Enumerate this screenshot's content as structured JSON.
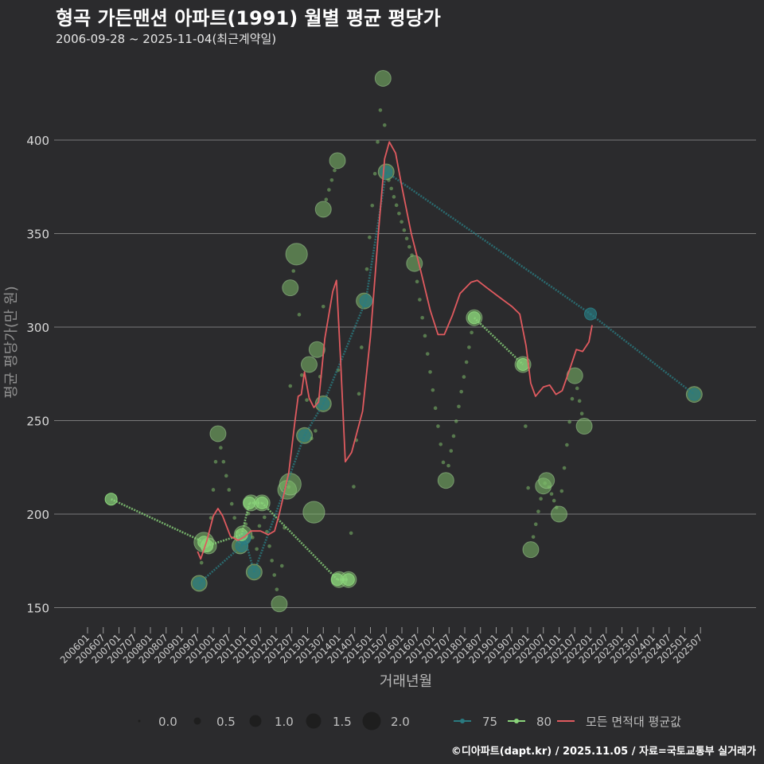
{
  "title": "형곡 가든맨션 아파트(1991) 월별 평균 평당가",
  "subtitle": "2006-09-28 ~ 2025-11-04(최근계약일)",
  "footer": "©디아파트(dapt.kr) / 2025.11.05 / 자료=국토교통부 실거래가",
  "colors": {
    "background": "#2b2b2d",
    "grid": "#7a7a7a",
    "series_75": "#2a7a80",
    "series_80": "#8ad47a",
    "average": "#e05a5f",
    "bubble": "#7dbb6a"
  },
  "chart_data": {
    "type": "scatter",
    "title": "형곡 가든맨션 아파트(1991) 월별 평균 평당가",
    "xlabel": "거래년월",
    "ylabel": "평균 평당가(만 원)",
    "ylim": [
      140,
      445
    ],
    "xlim": [
      2006.0,
      2026.0
    ],
    "y_ticks": [
      150,
      200,
      250,
      300,
      350,
      400
    ],
    "x_ticks": [
      "200601",
      "200607",
      "200701",
      "200707",
      "200801",
      "200807",
      "200901",
      "200907",
      "201001",
      "201007",
      "201101",
      "201107",
      "201201",
      "201207",
      "201301",
      "201307",
      "201401",
      "201407",
      "201501",
      "201507",
      "201601",
      "201607",
      "201701",
      "201707",
      "201801",
      "201807",
      "201901",
      "201907",
      "202001",
      "202007",
      "202101",
      "202107",
      "202201",
      "202207",
      "202301",
      "202307",
      "202401",
      "202407",
      "202501",
      "202507"
    ],
    "size_legend": {
      "title": "",
      "values": [
        "0.0",
        "0.5",
        "1.0",
        "1.5",
        "2.0"
      ]
    },
    "series_legend": [
      {
        "key": "75",
        "label": "75",
        "color": "#2a7a80"
      },
      {
        "key": "80",
        "label": "80",
        "color": "#8ad47a"
      },
      {
        "key": "avg",
        "label": "모든 면적대 평균값",
        "color": "#e05a5f"
      }
    ],
    "series": [
      {
        "name": "75",
        "values": [
          {
            "x": 2009.55,
            "y": 163
          },
          {
            "x": 2010.9,
            "y": 183
          },
          {
            "x": 2011.0,
            "y": 187
          },
          {
            "x": 2011.3,
            "y": 169
          },
          {
            "x": 2012.9,
            "y": 242
          },
          {
            "x": 2013.5,
            "y": 259
          },
          {
            "x": 2014.85,
            "y": 314
          },
          {
            "x": 2015.5,
            "y": 383
          },
          {
            "x": 2022.0,
            "y": 307
          },
          {
            "x": 2025.3,
            "y": 264
          }
        ]
      },
      {
        "name": "80",
        "values": [
          {
            "x": 2006.75,
            "y": 208
          },
          {
            "x": 2009.7,
            "y": 185
          },
          {
            "x": 2009.8,
            "y": 183
          },
          {
            "x": 2010.9,
            "y": 189
          },
          {
            "x": 2011.15,
            "y": 206
          },
          {
            "x": 2011.55,
            "y": 206
          },
          {
            "x": 2013.95,
            "y": 165
          },
          {
            "x": 2014.3,
            "y": 165
          },
          {
            "x": 2018.3,
            "y": 305
          },
          {
            "x": 2019.85,
            "y": 280
          }
        ]
      },
      {
        "name": "모든 면적대 평균값",
        "values": [
          {
            "x": 2009.5,
            "y": 180
          },
          {
            "x": 2009.6,
            "y": 176
          },
          {
            "x": 2009.8,
            "y": 186
          },
          {
            "x": 2010.0,
            "y": 199
          },
          {
            "x": 2010.15,
            "y": 203
          },
          {
            "x": 2010.3,
            "y": 199
          },
          {
            "x": 2010.55,
            "y": 188
          },
          {
            "x": 2010.8,
            "y": 186
          },
          {
            "x": 2011.0,
            "y": 188
          },
          {
            "x": 2011.2,
            "y": 191
          },
          {
            "x": 2011.5,
            "y": 191
          },
          {
            "x": 2011.75,
            "y": 189
          },
          {
            "x": 2011.95,
            "y": 191
          },
          {
            "x": 2012.1,
            "y": 200
          },
          {
            "x": 2012.4,
            "y": 222
          },
          {
            "x": 2012.6,
            "y": 250
          },
          {
            "x": 2012.7,
            "y": 263
          },
          {
            "x": 2012.8,
            "y": 264
          },
          {
            "x": 2012.9,
            "y": 276
          },
          {
            "x": 2013.05,
            "y": 262
          },
          {
            "x": 2013.2,
            "y": 257
          },
          {
            "x": 2013.35,
            "y": 260
          },
          {
            "x": 2013.55,
            "y": 294
          },
          {
            "x": 2013.8,
            "y": 319
          },
          {
            "x": 2013.92,
            "y": 325
          },
          {
            "x": 2014.05,
            "y": 282
          },
          {
            "x": 2014.2,
            "y": 228
          },
          {
            "x": 2014.4,
            "y": 233
          },
          {
            "x": 2014.75,
            "y": 255
          },
          {
            "x": 2015.0,
            "y": 295
          },
          {
            "x": 2015.25,
            "y": 350
          },
          {
            "x": 2015.45,
            "y": 390
          },
          {
            "x": 2015.6,
            "y": 399
          },
          {
            "x": 2015.8,
            "y": 393
          },
          {
            "x": 2016.0,
            "y": 375
          },
          {
            "x": 2016.3,
            "y": 350
          },
          {
            "x": 2016.6,
            "y": 330
          },
          {
            "x": 2016.9,
            "y": 309
          },
          {
            "x": 2017.15,
            "y": 296
          },
          {
            "x": 2017.35,
            "y": 296
          },
          {
            "x": 2017.6,
            "y": 306
          },
          {
            "x": 2017.85,
            "y": 318
          },
          {
            "x": 2018.2,
            "y": 324
          },
          {
            "x": 2018.4,
            "y": 325
          },
          {
            "x": 2018.7,
            "y": 321
          },
          {
            "x": 2019.1,
            "y": 316
          },
          {
            "x": 2019.5,
            "y": 311
          },
          {
            "x": 2019.75,
            "y": 307
          },
          {
            "x": 2019.95,
            "y": 290
          },
          {
            "x": 2020.1,
            "y": 270
          },
          {
            "x": 2020.25,
            "y": 263
          },
          {
            "x": 2020.5,
            "y": 268
          },
          {
            "x": 2020.7,
            "y": 269
          },
          {
            "x": 2020.9,
            "y": 264
          },
          {
            "x": 2021.1,
            "y": 266
          },
          {
            "x": 2021.35,
            "y": 278
          },
          {
            "x": 2021.55,
            "y": 288
          },
          {
            "x": 2021.75,
            "y": 287
          },
          {
            "x": 2021.95,
            "y": 292
          },
          {
            "x": 2022.05,
            "y": 301
          }
        ]
      }
    ],
    "bubbles": [
      {
        "x": 2009.55,
        "y": 163,
        "size": 1.0
      },
      {
        "x": 2009.7,
        "y": 185,
        "size": 1.4
      },
      {
        "x": 2009.85,
        "y": 183,
        "size": 1.0
      },
      {
        "x": 2010.15,
        "y": 243,
        "size": 1.0
      },
      {
        "x": 2010.85,
        "y": 183,
        "size": 1.0
      },
      {
        "x": 2010.95,
        "y": 189,
        "size": 1.2
      },
      {
        "x": 2011.2,
        "y": 206,
        "size": 1.0
      },
      {
        "x": 2011.3,
        "y": 169,
        "size": 1.0
      },
      {
        "x": 2011.55,
        "y": 206,
        "size": 1.0
      },
      {
        "x": 2012.1,
        "y": 152,
        "size": 1.0
      },
      {
        "x": 2012.35,
        "y": 213,
        "size": 1.3
      },
      {
        "x": 2012.45,
        "y": 216,
        "size": 1.6
      },
      {
        "x": 2012.45,
        "y": 321,
        "size": 1.0
      },
      {
        "x": 2012.65,
        "y": 339,
        "size": 1.6
      },
      {
        "x": 2012.9,
        "y": 242,
        "size": 1.0
      },
      {
        "x": 2013.05,
        "y": 280,
        "size": 1.0
      },
      {
        "x": 2013.2,
        "y": 201,
        "size": 1.6
      },
      {
        "x": 2013.3,
        "y": 288,
        "size": 1.0
      },
      {
        "x": 2013.5,
        "y": 259,
        "size": 1.0
      },
      {
        "x": 2013.5,
        "y": 363,
        "size": 1.0
      },
      {
        "x": 2013.95,
        "y": 389,
        "size": 1.0
      },
      {
        "x": 2014.0,
        "y": 165,
        "size": 1.0
      },
      {
        "x": 2014.3,
        "y": 165,
        "size": 1.0
      },
      {
        "x": 2014.8,
        "y": 314,
        "size": 1.0
      },
      {
        "x": 2015.4,
        "y": 433,
        "size": 1.0
      },
      {
        "x": 2015.5,
        "y": 383,
        "size": 1.0
      },
      {
        "x": 2016.4,
        "y": 334,
        "size": 1.0
      },
      {
        "x": 2017.4,
        "y": 218,
        "size": 1.0
      },
      {
        "x": 2018.3,
        "y": 305,
        "size": 1.0
      },
      {
        "x": 2019.85,
        "y": 280,
        "size": 1.0
      },
      {
        "x": 2020.1,
        "y": 181,
        "size": 1.0
      },
      {
        "x": 2020.5,
        "y": 215,
        "size": 1.0
      },
      {
        "x": 2020.6,
        "y": 218,
        "size": 1.0
      },
      {
        "x": 2021.0,
        "y": 200,
        "size": 1.0
      },
      {
        "x": 2021.5,
        "y": 274,
        "size": 1.0
      },
      {
        "x": 2021.8,
        "y": 247,
        "size": 1.0
      },
      {
        "x": 2025.3,
        "y": 264,
        "size": 1.0
      }
    ]
  }
}
